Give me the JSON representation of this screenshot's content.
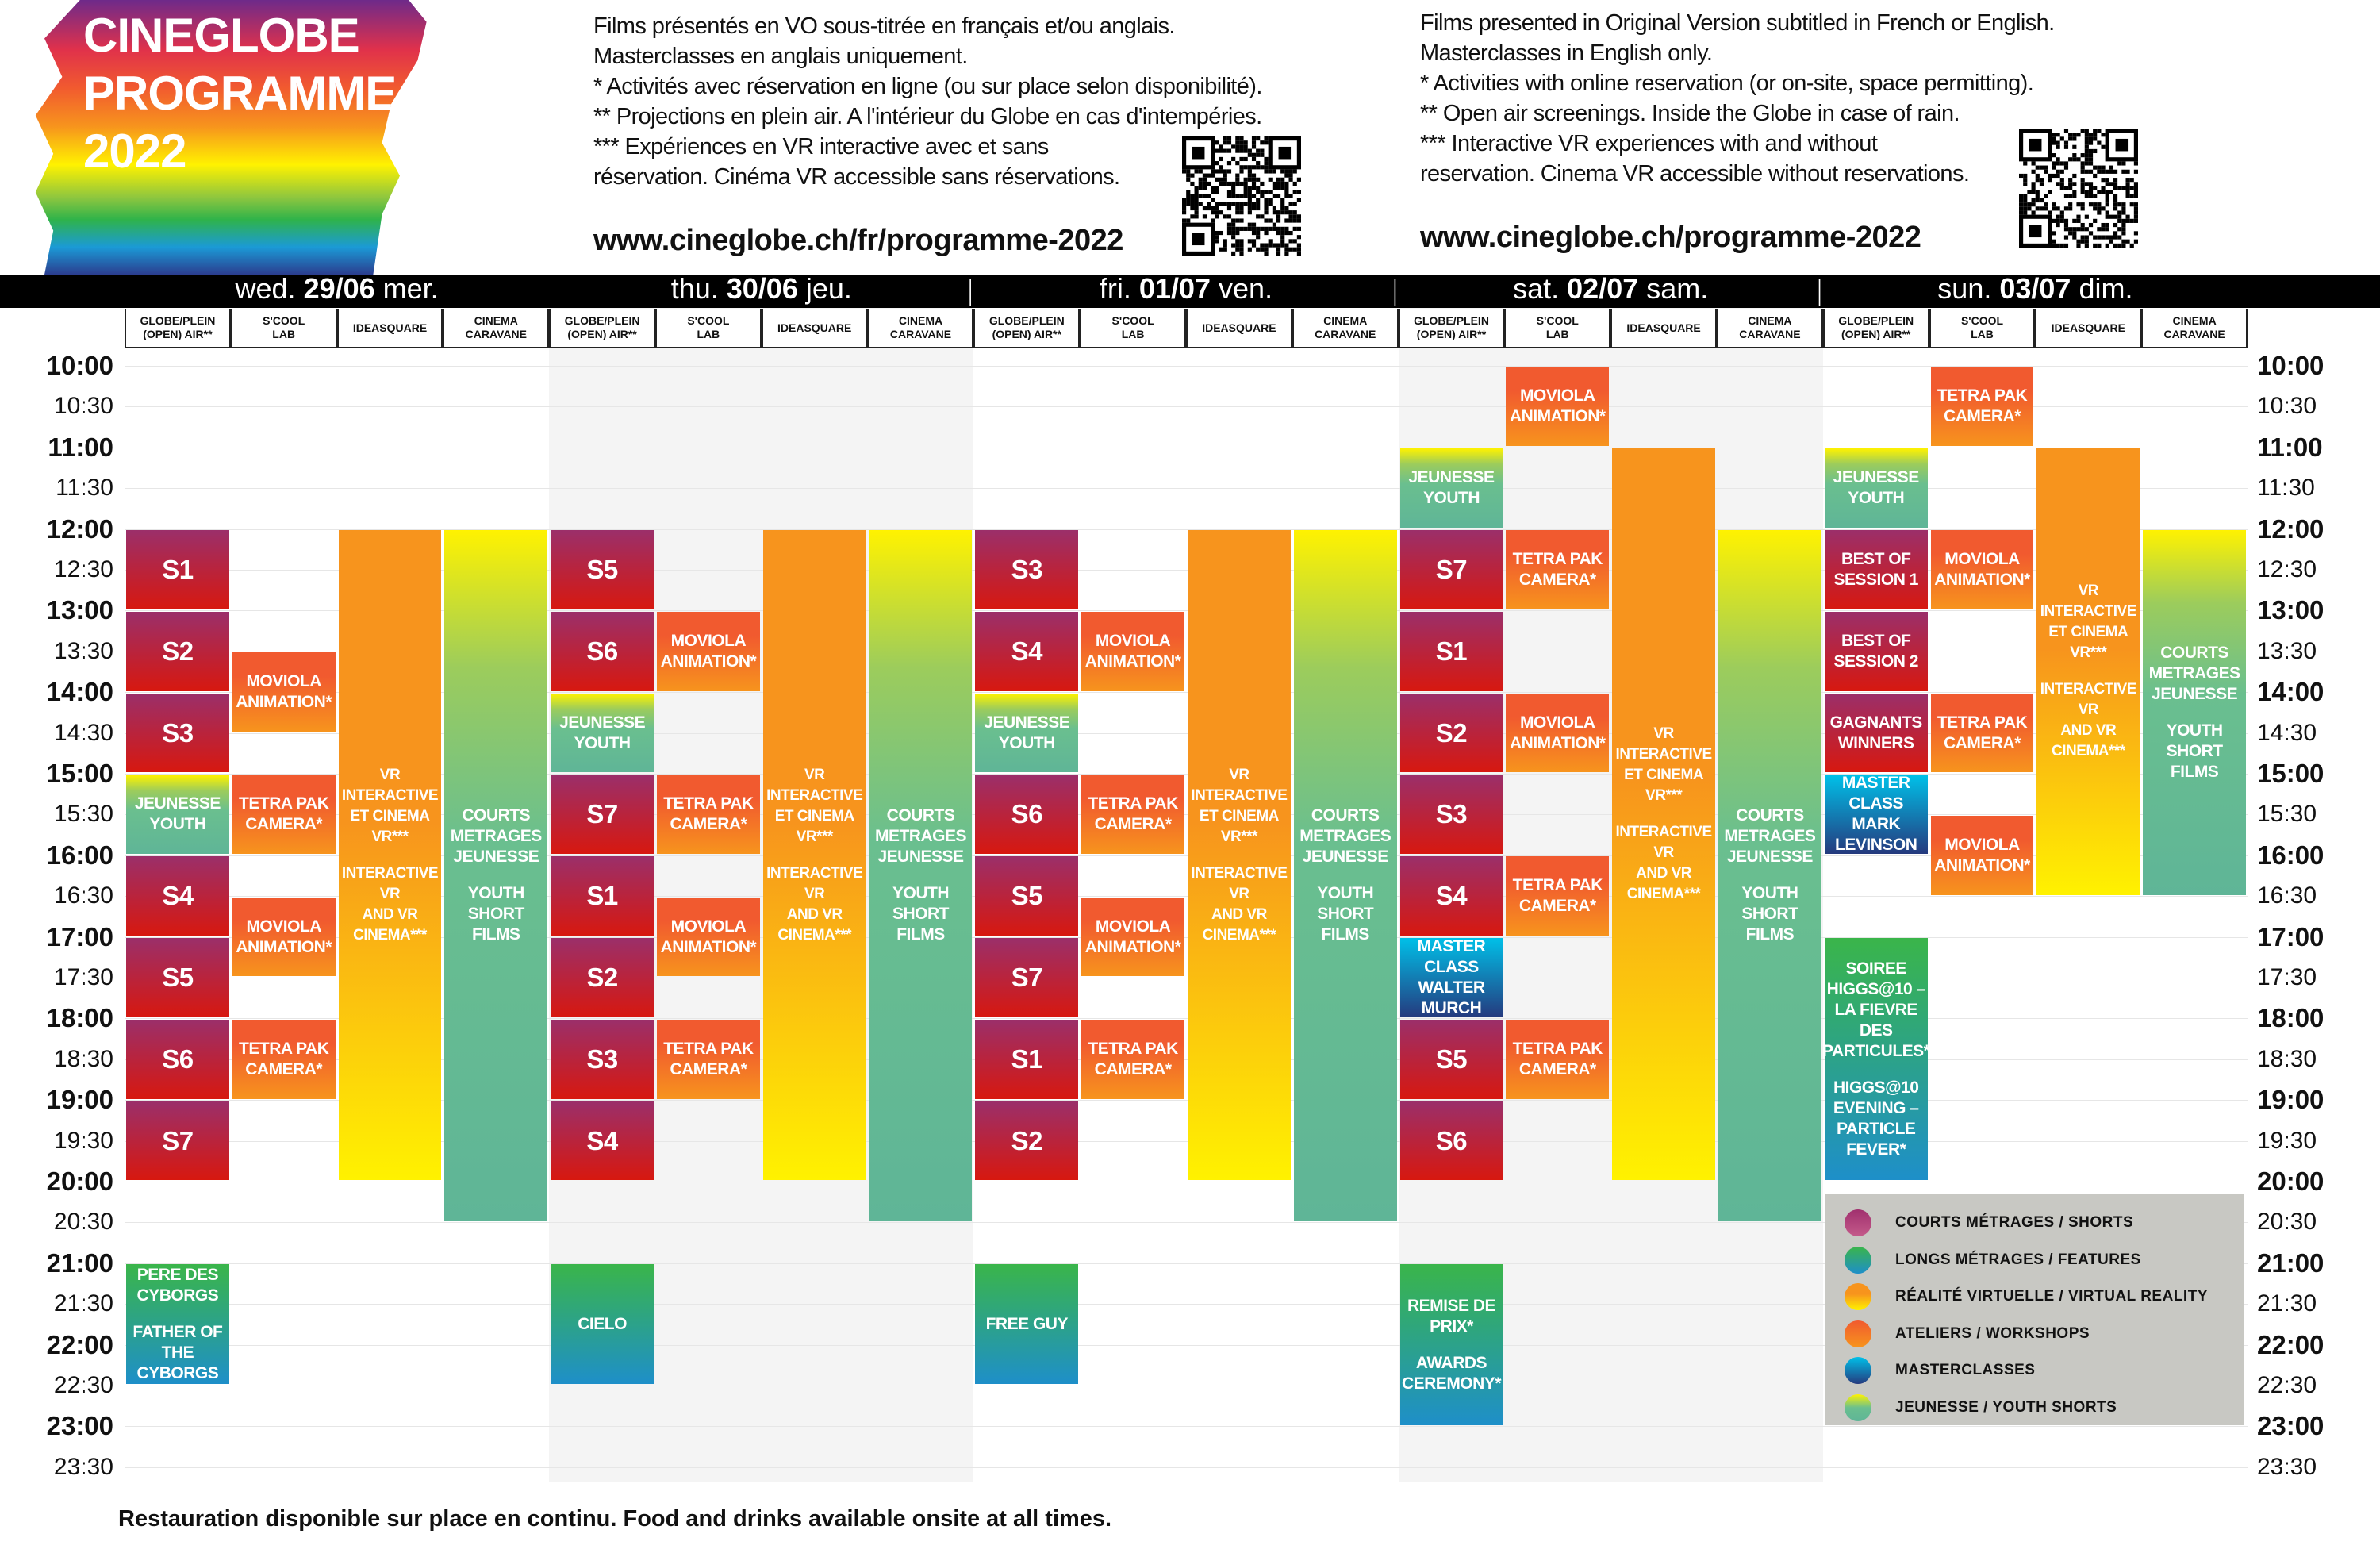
{
  "logo": {
    "lines": [
      "CINEGLOBE",
      "PROGRAMME",
      "2022"
    ]
  },
  "info_fr": {
    "lines": [
      "Films présentés en VO sous-titrée en français et/ou anglais.",
      "Masterclasses en anglais uniquement.",
      "* Activités avec réservation en ligne (ou sur place selon disponibilité).",
      "** Projections en plein air. A l'intérieur du Globe en cas d'intempéries.",
      "*** Expériences en VR interactive avec et sans",
      "réservation. Cinéma VR accessible sans réservations."
    ],
    "url": "www.cineglobe.ch/fr/programme-2022"
  },
  "info_en": {
    "lines": [
      "Films presented in Original Version subtitled in French or English.",
      "Masterclasses in English only.",
      "* Activities with online reservation (or on-site, space permitting).",
      "** Open air screenings. Inside the Globe in case of rain.",
      "*** Interactive VR experiences with and without",
      "reservation. Cinema VR accessible without reservations."
    ],
    "url": "www.cineglobe.ch/programme-2022"
  },
  "days": [
    {
      "en": "wed.",
      "date": "29/06",
      "fr": "mer."
    },
    {
      "en": "thu.",
      "date": "30/06",
      "fr": "jeu."
    },
    {
      "en": "fri.",
      "date": "01/07",
      "fr": "ven."
    },
    {
      "en": "sat.",
      "date": "02/07",
      "fr": "sam."
    },
    {
      "en": "sun.",
      "date": "03/07",
      "fr": "dim."
    }
  ],
  "day_separator": "|",
  "venues": [
    {
      "key": "globe",
      "lines": [
        "GLOBE/PLEIN",
        "(OPEN) AIR**"
      ]
    },
    {
      "key": "scool",
      "lines": [
        "S'COOL",
        "LAB"
      ]
    },
    {
      "key": "ideasquare",
      "lines": [
        "IDEASQUARE"
      ]
    },
    {
      "key": "caravane",
      "lines": [
        "CINEMA",
        "CARAVANE"
      ]
    }
  ],
  "times": [
    "10:00",
    "10:30",
    "11:00",
    "11:30",
    "12:00",
    "12:30",
    "13:00",
    "13:30",
    "14:00",
    "14:30",
    "15:00",
    "15:30",
    "16:00",
    "16:30",
    "17:00",
    "17:30",
    "18:00",
    "18:30",
    "19:00",
    "19:30",
    "20:00",
    "20:30",
    "21:00",
    "21:30",
    "22:00",
    "22:30",
    "23:00",
    "23:30"
  ],
  "categories": {
    "shorts": {
      "label": "COURTS MÉTRAGES / SHORTS",
      "colors": [
        "#9b2f6a",
        "#d7180f"
      ]
    },
    "features": {
      "label": "LONGS MÉTRAGES / FEATURES",
      "colors": [
        "#3ab54a",
        "#1e8fc9"
      ]
    },
    "vr": {
      "label": "RÉALITÉ VIRTUELLE / VIRTUAL REALITY",
      "colors": [
        "#f7941d",
        "#fff200"
      ]
    },
    "workshop": {
      "label": "ATELIERS / WORKSHOPS",
      "colors": [
        "#f15a2f",
        "#f7941d"
      ]
    },
    "masterclass": {
      "label": "MASTERCLASSES",
      "colors": [
        "#00c0e8",
        "#253a7e"
      ]
    },
    "youth": {
      "label": "JEUNESSE / YOUTH SHORTS",
      "colors": [
        "#fff200",
        "#5fb597"
      ]
    }
  },
  "legend_order": [
    "shorts",
    "features",
    "vr",
    "workshop",
    "masterclass",
    "youth"
  ],
  "schedule": [
    {
      "day": "29/06",
      "events": [
        {
          "venue": "globe",
          "start": "12:00",
          "end": "13:00",
          "cat": "shorts",
          "lines": [
            "S1"
          ]
        },
        {
          "venue": "globe",
          "start": "13:00",
          "end": "14:00",
          "cat": "shorts",
          "lines": [
            "S2"
          ]
        },
        {
          "venue": "globe",
          "start": "14:00",
          "end": "15:00",
          "cat": "shorts",
          "lines": [
            "S3"
          ]
        },
        {
          "venue": "globe",
          "start": "15:00",
          "end": "16:00",
          "cat": "youth",
          "lines": [
            "JEUNESSE",
            "YOUTH"
          ]
        },
        {
          "venue": "globe",
          "start": "16:00",
          "end": "17:00",
          "cat": "shorts",
          "lines": [
            "S4"
          ]
        },
        {
          "venue": "globe",
          "start": "17:00",
          "end": "18:00",
          "cat": "shorts",
          "lines": [
            "S5"
          ]
        },
        {
          "venue": "globe",
          "start": "18:00",
          "end": "19:00",
          "cat": "shorts",
          "lines": [
            "S6"
          ]
        },
        {
          "venue": "globe",
          "start": "19:00",
          "end": "20:00",
          "cat": "shorts",
          "lines": [
            "S7"
          ]
        },
        {
          "venue": "globe",
          "start": "21:00",
          "end": "22:30",
          "cat": "features",
          "lines": [
            "PERE DES",
            "CYBORGS",
            "",
            "FATHER OF",
            "THE CYBORGS"
          ]
        },
        {
          "venue": "scool",
          "start": "13:30",
          "end": "14:30",
          "cat": "workshop",
          "lines": [
            "MOVIOLA",
            "ANIMATION*"
          ]
        },
        {
          "venue": "scool",
          "start": "15:00",
          "end": "16:00",
          "cat": "workshop",
          "lines": [
            "TETRA PAK",
            "CAMERA*"
          ]
        },
        {
          "venue": "scool",
          "start": "16:30",
          "end": "17:30",
          "cat": "workshop",
          "lines": [
            "MOVIOLA",
            "ANIMATION*"
          ]
        },
        {
          "venue": "scool",
          "start": "18:00",
          "end": "19:00",
          "cat": "workshop",
          "lines": [
            "TETRA PAK",
            "CAMERA*"
          ]
        },
        {
          "venue": "ideasquare",
          "start": "12:00",
          "end": "20:00",
          "cat": "vr",
          "lines": [
            "VR",
            "INTERACTIVE",
            "ET CINEMA",
            "VR***",
            "",
            "INTERACTIVE",
            "VR",
            "AND VR",
            "CINEMA***"
          ]
        },
        {
          "venue": "caravane",
          "start": "12:00",
          "end": "20:30",
          "cat": "youth",
          "lines": [
            "COURTS",
            "METRAGES",
            "JEUNESSE",
            "",
            "YOUTH",
            "SHORT",
            "FILMS"
          ]
        }
      ]
    },
    {
      "day": "30/06",
      "events": [
        {
          "venue": "globe",
          "start": "12:00",
          "end": "13:00",
          "cat": "shorts",
          "lines": [
            "S5"
          ]
        },
        {
          "venue": "globe",
          "start": "13:00",
          "end": "14:00",
          "cat": "shorts",
          "lines": [
            "S6"
          ]
        },
        {
          "venue": "globe",
          "start": "14:00",
          "end": "15:00",
          "cat": "youth",
          "lines": [
            "JEUNESSE",
            "YOUTH"
          ]
        },
        {
          "venue": "globe",
          "start": "15:00",
          "end": "16:00",
          "cat": "shorts",
          "lines": [
            "S7"
          ]
        },
        {
          "venue": "globe",
          "start": "16:00",
          "end": "17:00",
          "cat": "shorts",
          "lines": [
            "S1"
          ]
        },
        {
          "venue": "globe",
          "start": "17:00",
          "end": "18:00",
          "cat": "shorts",
          "lines": [
            "S2"
          ]
        },
        {
          "venue": "globe",
          "start": "18:00",
          "end": "19:00",
          "cat": "shorts",
          "lines": [
            "S3"
          ]
        },
        {
          "venue": "globe",
          "start": "19:00",
          "end": "20:00",
          "cat": "shorts",
          "lines": [
            "S4"
          ]
        },
        {
          "venue": "globe",
          "start": "21:00",
          "end": "22:30",
          "cat": "features",
          "lines": [
            "CIELO"
          ]
        },
        {
          "venue": "scool",
          "start": "13:00",
          "end": "14:00",
          "cat": "workshop",
          "lines": [
            "MOVIOLA",
            "ANIMATION*"
          ]
        },
        {
          "venue": "scool",
          "start": "15:00",
          "end": "16:00",
          "cat": "workshop",
          "lines": [
            "TETRA PAK",
            "CAMERA*"
          ]
        },
        {
          "venue": "scool",
          "start": "16:30",
          "end": "17:30",
          "cat": "workshop",
          "lines": [
            "MOVIOLA",
            "ANIMATION*"
          ]
        },
        {
          "venue": "scool",
          "start": "18:00",
          "end": "19:00",
          "cat": "workshop",
          "lines": [
            "TETRA PAK",
            "CAMERA*"
          ]
        },
        {
          "venue": "ideasquare",
          "start": "12:00",
          "end": "20:00",
          "cat": "vr",
          "lines": [
            "VR",
            "INTERACTIVE",
            "ET CINEMA",
            "VR***",
            "",
            "INTERACTIVE",
            "VR",
            "AND VR",
            "CINEMA***"
          ]
        },
        {
          "venue": "caravane",
          "start": "12:00",
          "end": "20:30",
          "cat": "youth",
          "lines": [
            "COURTS",
            "METRAGES",
            "JEUNESSE",
            "",
            "YOUTH",
            "SHORT",
            "FILMS"
          ]
        }
      ]
    },
    {
      "day": "01/07",
      "events": [
        {
          "venue": "globe",
          "start": "12:00",
          "end": "13:00",
          "cat": "shorts",
          "lines": [
            "S3"
          ]
        },
        {
          "venue": "globe",
          "start": "13:00",
          "end": "14:00",
          "cat": "shorts",
          "lines": [
            "S4"
          ]
        },
        {
          "venue": "globe",
          "start": "14:00",
          "end": "15:00",
          "cat": "youth",
          "lines": [
            "JEUNESSE",
            "YOUTH"
          ]
        },
        {
          "venue": "globe",
          "start": "15:00",
          "end": "16:00",
          "cat": "shorts",
          "lines": [
            "S6"
          ]
        },
        {
          "venue": "globe",
          "start": "16:00",
          "end": "17:00",
          "cat": "shorts",
          "lines": [
            "S5"
          ]
        },
        {
          "venue": "globe",
          "start": "17:00",
          "end": "18:00",
          "cat": "shorts",
          "lines": [
            "S7"
          ]
        },
        {
          "venue": "globe",
          "start": "18:00",
          "end": "19:00",
          "cat": "shorts",
          "lines": [
            "S1"
          ]
        },
        {
          "venue": "globe",
          "start": "19:00",
          "end": "20:00",
          "cat": "shorts",
          "lines": [
            "S2"
          ]
        },
        {
          "venue": "globe",
          "start": "21:00",
          "end": "22:30",
          "cat": "features",
          "lines": [
            "FREE GUY"
          ]
        },
        {
          "venue": "scool",
          "start": "13:00",
          "end": "14:00",
          "cat": "workshop",
          "lines": [
            "MOVIOLA",
            "ANIMATION*"
          ]
        },
        {
          "venue": "scool",
          "start": "15:00",
          "end": "16:00",
          "cat": "workshop",
          "lines": [
            "TETRA PAK",
            "CAMERA*"
          ]
        },
        {
          "venue": "scool",
          "start": "16:30",
          "end": "17:30",
          "cat": "workshop",
          "lines": [
            "MOVIOLA",
            "ANIMATION*"
          ]
        },
        {
          "venue": "scool",
          "start": "18:00",
          "end": "19:00",
          "cat": "workshop",
          "lines": [
            "TETRA PAK",
            "CAMERA*"
          ]
        },
        {
          "venue": "ideasquare",
          "start": "12:00",
          "end": "20:00",
          "cat": "vr",
          "lines": [
            "VR",
            "INTERACTIVE",
            "ET CINEMA",
            "VR***",
            "",
            "INTERACTIVE",
            "VR",
            "AND VR",
            "CINEMA***"
          ]
        },
        {
          "venue": "caravane",
          "start": "12:00",
          "end": "20:30",
          "cat": "youth",
          "lines": [
            "COURTS",
            "METRAGES",
            "JEUNESSE",
            "",
            "YOUTH",
            "SHORT",
            "FILMS"
          ]
        }
      ]
    },
    {
      "day": "02/07",
      "events": [
        {
          "venue": "globe",
          "start": "11:00",
          "end": "12:00",
          "cat": "youth",
          "lines": [
            "JEUNESSE",
            "YOUTH"
          ]
        },
        {
          "venue": "globe",
          "start": "12:00",
          "end": "13:00",
          "cat": "shorts",
          "lines": [
            "S7"
          ]
        },
        {
          "venue": "globe",
          "start": "13:00",
          "end": "14:00",
          "cat": "shorts",
          "lines": [
            "S1"
          ]
        },
        {
          "venue": "globe",
          "start": "14:00",
          "end": "15:00",
          "cat": "shorts",
          "lines": [
            "S2"
          ]
        },
        {
          "venue": "globe",
          "start": "15:00",
          "end": "16:00",
          "cat": "shorts",
          "lines": [
            "S3"
          ]
        },
        {
          "venue": "globe",
          "start": "16:00",
          "end": "17:00",
          "cat": "shorts",
          "lines": [
            "S4"
          ]
        },
        {
          "venue": "globe",
          "start": "17:00",
          "end": "18:00",
          "cat": "masterclass",
          "lines": [
            "MASTER",
            "CLASS",
            "WALTER",
            "MURCH"
          ]
        },
        {
          "venue": "globe",
          "start": "18:00",
          "end": "19:00",
          "cat": "shorts",
          "lines": [
            "S5"
          ]
        },
        {
          "venue": "globe",
          "start": "19:00",
          "end": "20:00",
          "cat": "shorts",
          "lines": [
            "S6"
          ]
        },
        {
          "venue": "globe",
          "start": "21:00",
          "end": "23:00",
          "cat": "features",
          "lines": [
            "REMISE DE",
            "PRIX*",
            "",
            "AWARDS",
            "CEREMONY*"
          ]
        },
        {
          "venue": "scool",
          "start": "10:00",
          "end": "11:00",
          "cat": "workshop",
          "lines": [
            "MOVIOLA",
            "ANIMATION*"
          ]
        },
        {
          "venue": "scool",
          "start": "12:00",
          "end": "13:00",
          "cat": "workshop",
          "lines": [
            "TETRA PAK",
            "CAMERA*"
          ]
        },
        {
          "venue": "scool",
          "start": "14:00",
          "end": "15:00",
          "cat": "workshop",
          "lines": [
            "MOVIOLA",
            "ANIMATION*"
          ]
        },
        {
          "venue": "scool",
          "start": "16:00",
          "end": "17:00",
          "cat": "workshop",
          "lines": [
            "TETRA PAK",
            "CAMERA*"
          ]
        },
        {
          "venue": "scool",
          "start": "18:00",
          "end": "19:00",
          "cat": "workshop",
          "lines": [
            "TETRA PAK",
            "CAMERA*"
          ]
        },
        {
          "venue": "ideasquare",
          "start": "11:00",
          "end": "20:00",
          "cat": "vr",
          "lines": [
            "VR",
            "INTERACTIVE",
            "ET CINEMA",
            "VR***",
            "",
            "INTERACTIVE",
            "VR",
            "AND VR",
            "CINEMA***"
          ]
        },
        {
          "venue": "caravane",
          "start": "12:00",
          "end": "20:30",
          "cat": "youth",
          "lines": [
            "COURTS",
            "METRAGES",
            "JEUNESSE",
            "",
            "YOUTH",
            "SHORT",
            "FILMS"
          ]
        }
      ]
    },
    {
      "day": "03/07",
      "events": [
        {
          "venue": "globe",
          "start": "11:00",
          "end": "12:00",
          "cat": "youth",
          "lines": [
            "JEUNESSE",
            "YOUTH"
          ]
        },
        {
          "venue": "globe",
          "start": "12:00",
          "end": "13:00",
          "cat": "shorts",
          "lines": [
            "BEST OF",
            "SESSION 1"
          ]
        },
        {
          "venue": "globe",
          "start": "13:00",
          "end": "14:00",
          "cat": "shorts",
          "lines": [
            "BEST OF",
            "SESSION 2"
          ]
        },
        {
          "venue": "globe",
          "start": "14:00",
          "end": "15:00",
          "cat": "shorts",
          "lines": [
            "GAGNANTS",
            "WINNERS"
          ]
        },
        {
          "venue": "globe",
          "start": "15:00",
          "end": "16:00",
          "cat": "masterclass",
          "lines": [
            "MASTER",
            "CLASS",
            "MARK",
            "LEVINSON"
          ]
        },
        {
          "venue": "globe",
          "start": "17:00",
          "end": "20:00",
          "cat": "features",
          "lines": [
            "SOIREE",
            "HIGGS@10 –",
            "LA FIEVRE DES",
            "PARTICULES*",
            "",
            "HIGGS@10",
            "EVENING –",
            "PARTICLE",
            "FEVER*"
          ]
        },
        {
          "venue": "scool",
          "start": "10:00",
          "end": "11:00",
          "cat": "workshop",
          "lines": [
            "TETRA PAK",
            "CAMERA*"
          ]
        },
        {
          "venue": "scool",
          "start": "12:00",
          "end": "13:00",
          "cat": "workshop",
          "lines": [
            "MOVIOLA",
            "ANIMATION*"
          ]
        },
        {
          "venue": "scool",
          "start": "14:00",
          "end": "15:00",
          "cat": "workshop",
          "lines": [
            "TETRA PAK",
            "CAMERA*"
          ]
        },
        {
          "venue": "scool",
          "start": "15:30",
          "end": "16:30",
          "cat": "workshop",
          "lines": [
            "MOVIOLA",
            "ANIMATION*"
          ]
        },
        {
          "venue": "ideasquare",
          "start": "11:00",
          "end": "16:30",
          "cat": "vr",
          "lines": [
            "VR",
            "INTERACTIVE",
            "ET CINEMA",
            "VR***",
            "",
            "INTERACTIVE",
            "VR",
            "AND VR",
            "CINEMA***"
          ]
        },
        {
          "venue": "caravane",
          "start": "12:00",
          "end": "16:30",
          "cat": "youth",
          "lines": [
            "COURTS",
            "METRAGES",
            "JEUNESSE",
            "",
            "YOUTH",
            "SHORT",
            "FILMS"
          ]
        }
      ]
    }
  ],
  "footer": "Restauration disponible sur place en continu. Food and drinks available onsite at all times."
}
